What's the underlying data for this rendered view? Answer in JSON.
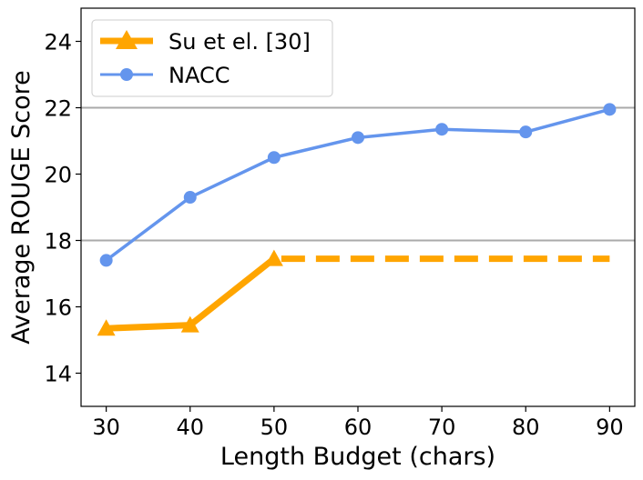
{
  "chart_data": {
    "type": "line",
    "title": "",
    "xlabel": "Length Budget (chars)",
    "ylabel": "Average ROUGE Score",
    "x": [
      30,
      40,
      50,
      60,
      70,
      80,
      90
    ],
    "xlim": [
      27,
      93
    ],
    "ylim": [
      13,
      25
    ],
    "yticks": [
      14,
      16,
      18,
      20,
      22,
      24
    ],
    "xtick_labels": [
      "30",
      "40",
      "50",
      "60",
      "70",
      "80",
      "90"
    ],
    "ytick_labels": [
      "14",
      "16",
      "18",
      "20",
      "22",
      "24"
    ],
    "reference_lines": [
      18,
      22
    ],
    "legend_position": "top-left",
    "series": [
      {
        "name": "Su et el. [30]",
        "color": "#FFA500",
        "marker": "triangle",
        "x": [
          30,
          40,
          50
        ],
        "values": [
          15.35,
          15.45,
          17.45
        ],
        "extension": {
          "style": "dashed",
          "x": [
            50,
            90
          ],
          "values": [
            17.45,
            17.45
          ]
        }
      },
      {
        "name": "NACC",
        "color": "#6495ED",
        "marker": "circle",
        "x": [
          30,
          40,
          50,
          60,
          70,
          80,
          90
        ],
        "values": [
          17.4,
          19.3,
          20.5,
          21.1,
          21.35,
          21.27,
          21.95
        ]
      }
    ]
  }
}
